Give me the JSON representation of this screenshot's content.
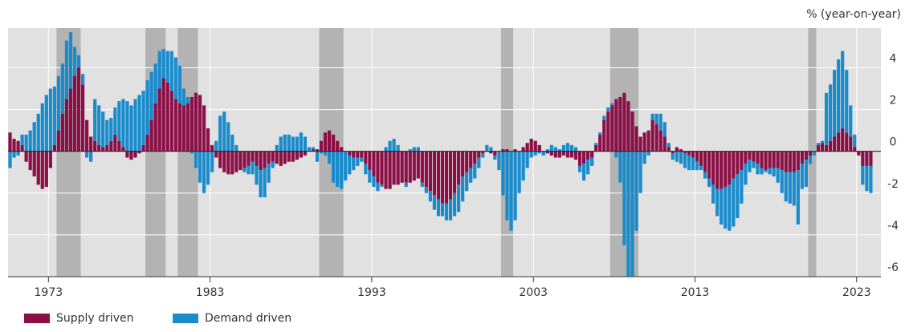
{
  "chart_data": {
    "type": "stacked-bar",
    "y_axis_label": "% (year-on-year)",
    "xlim": [
      1970.5,
      2024.5
    ],
    "xticks": [
      1973,
      1983,
      1993,
      2003,
      2013,
      2023
    ],
    "ylim": [
      -6,
      5.9
    ],
    "yticks": [
      -6,
      -4,
      -2,
      0,
      2,
      4
    ],
    "grid": true,
    "shaded_periods": [
      [
        1973.5,
        1975.0
      ],
      [
        1979.0,
        1980.25
      ],
      [
        1981.0,
        1982.25
      ],
      [
        1989.75,
        1991.25
      ],
      [
        2001.0,
        2001.75
      ],
      [
        2007.75,
        2009.5
      ],
      [
        2020.0,
        2020.5
      ]
    ],
    "x": [
      1970.5,
      1970.75,
      1971,
      1971.25,
      1971.5,
      1971.75,
      1972,
      1972.25,
      1972.5,
      1972.75,
      1973,
      1973.25,
      1973.5,
      1973.75,
      1974,
      1974.25,
      1974.5,
      1974.75,
      1975,
      1975.25,
      1975.5,
      1975.75,
      1976,
      1976.25,
      1976.5,
      1976.75,
      1977,
      1977.25,
      1977.5,
      1977.75,
      1978,
      1978.25,
      1978.5,
      1978.75,
      1979,
      1979.25,
      1979.5,
      1979.75,
      1980,
      1980.25,
      1980.5,
      1980.75,
      1981,
      1981.25,
      1981.5,
      1981.75,
      1982,
      1982.25,
      1982.5,
      1982.75,
      1983,
      1983.25,
      1983.5,
      1983.75,
      1984,
      1984.25,
      1984.5,
      1984.75,
      1985,
      1985.25,
      1985.5,
      1985.75,
      1986,
      1986.25,
      1986.5,
      1986.75,
      1987,
      1987.25,
      1987.5,
      1987.75,
      1988,
      1988.25,
      1988.5,
      1988.75,
      1989,
      1989.25,
      1989.5,
      1989.75,
      1990,
      1990.25,
      1990.5,
      1990.75,
      1991,
      1991.25,
      1991.5,
      1991.75,
      1992,
      1992.25,
      1992.5,
      1992.75,
      1993,
      1993.25,
      1993.5,
      1993.75,
      1994,
      1994.25,
      1994.5,
      1994.75,
      1995,
      1995.25,
      1995.5,
      1995.75,
      1996,
      1996.25,
      1996.5,
      1996.75,
      1997,
      1997.25,
      1997.5,
      1997.75,
      1998,
      1998.25,
      1998.5,
      1998.75,
      1999,
      1999.25,
      1999.5,
      1999.75,
      2000,
      2000.25,
      2000.5,
      2000.75,
      2001,
      2001.25,
      2001.5,
      2001.75,
      2002,
      2002.25,
      2002.5,
      2002.75,
      2003,
      2003.25,
      2003.5,
      2003.75,
      2004,
      2004.25,
      2004.5,
      2004.75,
      2005,
      2005.25,
      2005.5,
      2005.75,
      2006,
      2006.25,
      2006.5,
      2006.75,
      2007,
      2007.25,
      2007.5,
      2007.75,
      2008,
      2008.25,
      2008.5,
      2008.75,
      2009,
      2009.25,
      2009.5,
      2009.75,
      2010,
      2010.25,
      2010.5,
      2010.75,
      2011,
      2011.25,
      2011.5,
      2011.75,
      2012,
      2012.25,
      2012.5,
      2012.75,
      2013,
      2013.25,
      2013.5,
      2013.75,
      2014,
      2014.25,
      2014.5,
      2014.75,
      2015,
      2015.25,
      2015.5,
      2015.75,
      2016,
      2016.25,
      2016.5,
      2016.75,
      2017,
      2017.25,
      2017.5,
      2017.75,
      2018,
      2018.25,
      2018.5,
      2018.75,
      2019,
      2019.25,
      2019.5,
      2019.75,
      2020,
      2020.25,
      2020.5,
      2020.75,
      2021,
      2021.25,
      2021.5,
      2021.75,
      2022,
      2022.25,
      2022.5,
      2022.75,
      2023,
      2023.25,
      2023.5,
      2023.75
    ],
    "series": [
      {
        "name": "Supply driven",
        "color": "#8c1047",
        "values": [
          0.9,
          0.6,
          0.5,
          0.3,
          -0.5,
          -0.9,
          -1.2,
          -1.6,
          -1.8,
          -1.7,
          -0.8,
          0.3,
          1.0,
          1.8,
          2.5,
          3.0,
          3.6,
          4.0,
          3.2,
          1.5,
          0.7,
          0.5,
          0.3,
          0.2,
          0.3,
          0.5,
          0.8,
          0.5,
          0.2,
          -0.3,
          -0.4,
          -0.3,
          -0.1,
          0.3,
          0.8,
          1.5,
          2.3,
          3.0,
          3.5,
          3.3,
          2.9,
          2.5,
          2.3,
          2.2,
          2.3,
          2.6,
          2.8,
          2.7,
          2.2,
          1.1,
          0.3,
          -0.3,
          -0.8,
          -1.0,
          -1.1,
          -1.1,
          -1.0,
          -0.9,
          -0.8,
          -0.7,
          -0.5,
          -0.7,
          -0.9,
          -0.8,
          -0.6,
          -0.5,
          -0.6,
          -0.7,
          -0.6,
          -0.5,
          -0.5,
          -0.4,
          -0.3,
          -0.2,
          0.0,
          0.1,
          0.1,
          0.5,
          0.9,
          1.0,
          0.8,
          0.5,
          0.2,
          0.0,
          -0.2,
          -0.3,
          -0.3,
          -0.3,
          -0.6,
          -0.9,
          -1.2,
          -1.5,
          -1.6,
          -1.8,
          -1.8,
          -1.6,
          -1.6,
          -1.5,
          -1.5,
          -1.5,
          -1.4,
          -1.3,
          -1.5,
          -1.7,
          -1.9,
          -2.1,
          -2.3,
          -2.5,
          -2.5,
          -2.3,
          -2.0,
          -1.6,
          -1.2,
          -1.0,
          -0.8,
          -0.6,
          -0.3,
          -0.1,
          0.0,
          -0.1,
          -0.2,
          0.0,
          0.1,
          0.1,
          0.0,
          0.1,
          0.0,
          0.2,
          0.4,
          0.6,
          0.5,
          0.3,
          0.0,
          -0.1,
          -0.2,
          -0.3,
          -0.3,
          -0.2,
          -0.3,
          -0.3,
          -0.4,
          -0.7,
          -0.6,
          -0.4,
          -0.3,
          0.3,
          0.8,
          1.5,
          1.9,
          2.2,
          2.5,
          2.6,
          2.8,
          2.4,
          1.9,
          1.2,
          0.7,
          0.9,
          1.0,
          1.5,
          1.3,
          1.0,
          0.7,
          0.2,
          -0.1,
          0.2,
          0.1,
          -0.1,
          -0.2,
          -0.3,
          -0.5,
          -0.7,
          -1.0,
          -1.3,
          -1.6,
          -1.8,
          -1.8,
          -1.7,
          -1.6,
          -1.3,
          -1.1,
          -0.9,
          -0.6,
          -0.4,
          -0.5,
          -0.6,
          -0.8,
          -0.9,
          -0.8,
          -0.8,
          -0.8,
          -0.9,
          -1.0,
          -1.0,
          -1.0,
          -0.9,
          -0.6,
          -0.4,
          -0.2,
          0.0,
          0.3,
          0.4,
          0.3,
          0.5,
          0.7,
          0.9,
          1.1,
          0.9,
          0.7,
          0.2,
          -0.2,
          -0.7,
          -0.7,
          -0.7
        ]
      },
      {
        "name": "Demand driven",
        "color": "#1a8ccc",
        "values": [
          -0.8,
          -0.3,
          -0.2,
          0.5,
          0.8,
          1.0,
          1.4,
          1.8,
          2.3,
          2.7,
          3.0,
          2.8,
          2.6,
          2.4,
          2.8,
          2.7,
          1.4,
          0.6,
          0.5,
          -0.3,
          -0.5,
          2.0,
          1.9,
          1.7,
          1.2,
          1.1,
          1.3,
          1.9,
          2.3,
          2.4,
          2.2,
          2.5,
          2.7,
          2.6,
          2.6,
          2.3,
          1.9,
          1.8,
          1.4,
          1.5,
          1.9,
          2.0,
          1.8,
          0.8,
          0.3,
          -0.1,
          -0.8,
          -1.5,
          -2.0,
          -1.6,
          -1.0,
          0.5,
          1.7,
          1.9,
          1.4,
          0.8,
          0.3,
          0.0,
          -0.2,
          -0.4,
          -0.6,
          -0.9,
          -1.3,
          -1.4,
          -0.9,
          -0.3,
          0.3,
          0.7,
          0.8,
          0.8,
          0.7,
          0.7,
          0.9,
          0.7,
          0.2,
          0.1,
          -0.5,
          -0.1,
          -0.2,
          -0.6,
          -1.5,
          -1.7,
          -1.8,
          -1.4,
          -0.9,
          -0.6,
          -0.4,
          -0.2,
          -0.5,
          -0.6,
          -0.5,
          -0.4,
          -0.1,
          0.2,
          0.5,
          0.6,
          0.3,
          0.0,
          -0.2,
          0.1,
          0.2,
          0.2,
          -0.2,
          -0.3,
          -0.5,
          -0.7,
          -0.8,
          -0.6,
          -0.8,
          -1.0,
          -1.1,
          -1.3,
          -1.2,
          -0.9,
          -0.7,
          -0.7,
          -0.5,
          -0.2,
          0.3,
          0.2,
          -0.2,
          -0.9,
          -2.1,
          -3.3,
          -3.8,
          -3.3,
          -2.0,
          -1.4,
          -0.8,
          -0.3,
          -0.2,
          -0.1,
          -0.2,
          0.1,
          0.3,
          0.2,
          0.1,
          0.3,
          0.4,
          0.3,
          0.2,
          -0.3,
          -0.8,
          -0.7,
          -0.4,
          0.1,
          0.1,
          0.2,
          0.2,
          0.1,
          -0.3,
          -1.5,
          -4.5,
          -6.0,
          -6.0,
          -3.8,
          -2.0,
          -0.6,
          -0.2,
          0.3,
          0.5,
          0.8,
          0.7,
          0.2,
          -0.3,
          -0.5,
          -0.6,
          -0.7,
          -0.7,
          -0.6,
          -0.4,
          -0.2,
          -0.3,
          -0.4,
          -0.9,
          -1.3,
          -1.7,
          -2.0,
          -2.2,
          -2.3,
          -2.1,
          -1.6,
          -1.0,
          -0.6,
          -0.3,
          -0.5,
          -0.3,
          -0.1,
          -0.3,
          -0.4,
          -0.7,
          -1.1,
          -1.4,
          -1.5,
          -1.6,
          -2.6,
          -1.2,
          -1.3,
          -0.4,
          -0.2,
          0.1,
          0.1,
          2.5,
          2.7,
          3.2,
          3.5,
          3.7,
          3.0,
          1.5,
          0.6,
          0.0,
          -0.9,
          -1.2,
          -1.3
        ]
      }
    ]
  }
}
